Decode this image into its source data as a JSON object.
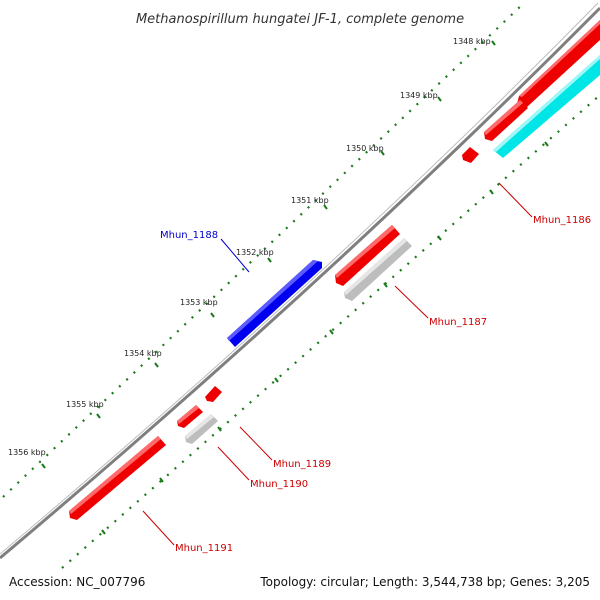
{
  "title": "Methanospirillum hungatei JF-1, complete genome",
  "footer": {
    "accession": "Accession: NC_007796",
    "summary": "Topology: circular; Length: 3,544,738 bp; Genes: 3,205"
  },
  "ticks": [
    "1348 kbp",
    "1349 kbp",
    "1350 kbp",
    "1351 kbp",
    "1352 kbp",
    "1353 kbp",
    "1354 kbp",
    "1355 kbp",
    "1356 kbp"
  ],
  "genes": {
    "mhun_1186": "Mhun_1186",
    "mhun_1187": "Mhun_1187",
    "mhun_1188": "Mhun_1188",
    "mhun_1189": "Mhun_1189",
    "mhun_1190": "Mhun_1190",
    "mhun_1191": "Mhun_1191"
  },
  "colors": {
    "forward_strand": "#0000ee",
    "reverse_strand": "#ee0000",
    "cds_cyan": "#00e5e5",
    "cds_gray": "#bdbdbd",
    "backbone": "#7f7f7f",
    "tick_dots": "#1a7a1a",
    "label_red": "#cc0000",
    "label_blue": "#0000cc"
  }
}
